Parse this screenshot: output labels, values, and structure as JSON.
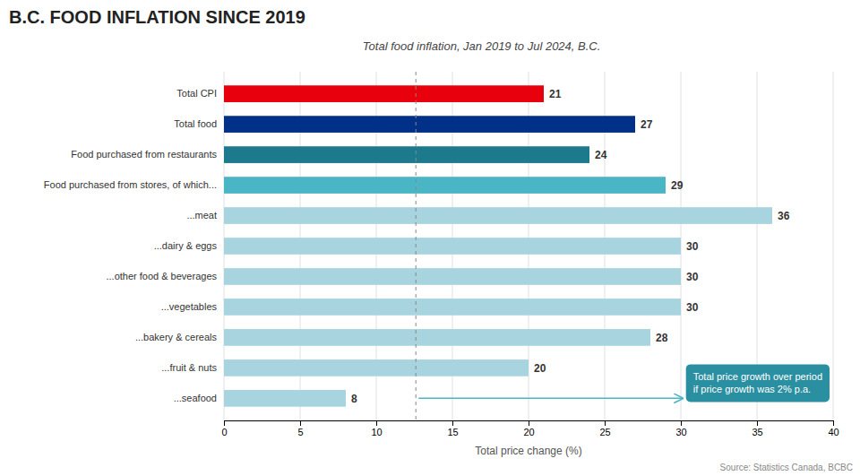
{
  "chart_data": {
    "type": "bar",
    "orientation": "horizontal",
    "title": "B.C. FOOD INFLATION SINCE 2019",
    "subtitle": "Total food inflation, Jan 2019 to Jul 2024, B.C.",
    "xlabel": "Total price change (%)",
    "source": "Source: Statistics Canada, BCBC",
    "categories": [
      "Total CPI",
      "Total food",
      "Food purchased from restaurants",
      "Food purchased from stores, of which...",
      "...meat",
      "...dairy & eggs",
      "...other food & beverages",
      "...vegetables",
      "...bakery & cereals",
      "...fruit & nuts",
      "...seafood"
    ],
    "values": [
      21,
      27,
      24,
      29,
      36,
      30,
      30,
      30,
      28,
      20,
      8
    ],
    "colors": [
      "#e8000d",
      "#003087",
      "#1d7a8c",
      "#4ab5c4",
      "#a8d4e0",
      "#a8d4e0",
      "#a8d4e0",
      "#a8d4e0",
      "#a8d4e0",
      "#a8d4e0",
      "#a8d4e0"
    ],
    "xlim": [
      0,
      40
    ],
    "xticks": [
      0,
      5,
      10,
      15,
      20,
      25,
      30,
      35,
      40
    ],
    "vline_x": 12.6,
    "annotation": "Total price growth over period\nif price growth was 2% p.a.",
    "grid": true,
    "data_labels": true
  }
}
